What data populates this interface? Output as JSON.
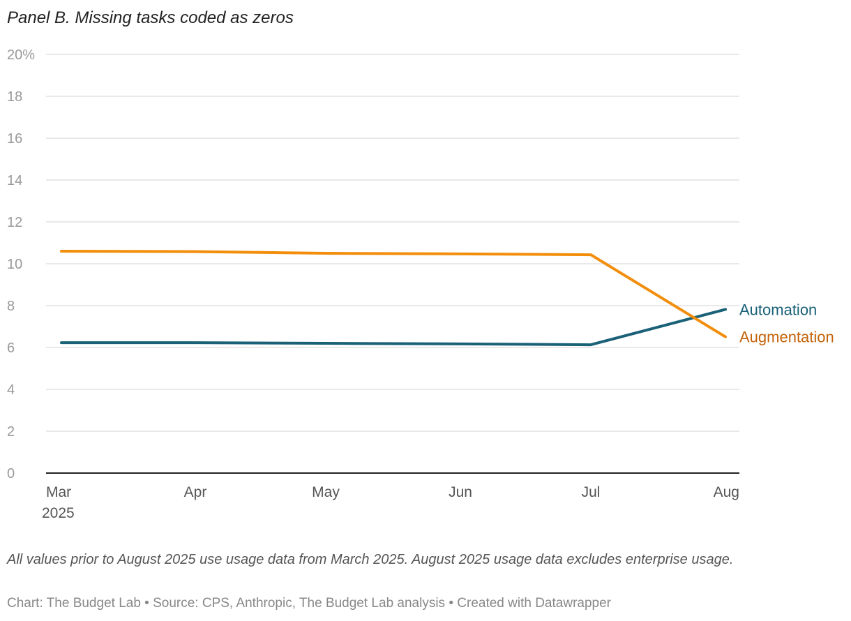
{
  "chart_data": {
    "type": "line",
    "title": "Panel B. Missing tasks coded as zeros",
    "x": [
      "Mar",
      "Apr",
      "May",
      "Jun",
      "Jul",
      "Aug"
    ],
    "x_tick_labels": [
      "Mar",
      "Apr",
      "May",
      "Jun",
      "Jul",
      "Aug"
    ],
    "x_first_year": "2025",
    "ylim": [
      0,
      20
    ],
    "y_ticks": [
      0,
      2,
      4,
      6,
      8,
      10,
      12,
      14,
      16,
      18,
      20
    ],
    "y_tick_labels": [
      "0",
      "2",
      "4",
      "6",
      "8",
      "10",
      "12",
      "14",
      "16",
      "18",
      "20%"
    ],
    "grid": true,
    "legend": "direct labels at line ends (right)",
    "series": [
      {
        "name": "Automation",
        "color": "#1a6178",
        "label_color": "#1a6178",
        "values": [
          6.23,
          6.23,
          6.2,
          6.17,
          6.13,
          7.82
        ]
      },
      {
        "name": "Augmentation",
        "color": "#f28e0c",
        "label_color": "#c4630a",
        "values": [
          10.6,
          10.58,
          10.5,
          10.47,
          10.43,
          6.51
        ]
      }
    ]
  },
  "notes": "All values prior to August 2025 use usage data from March 2025. August 2025 usage data excludes enterprise usage.",
  "credit": "Chart: The Budget Lab • Source: CPS, Anthropic, The Budget Lab analysis • Created with Datawrapper"
}
